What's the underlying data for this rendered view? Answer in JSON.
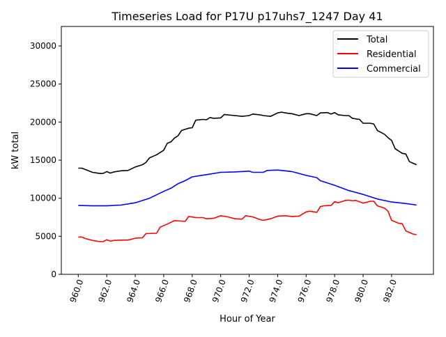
{
  "chart_data": {
    "type": "line",
    "title": "Timeseries Load for P17U p17uhs7_1247  Day 41",
    "xlabel": "Hour of Year",
    "ylabel": "kW total",
    "xlim": [
      958.81,
      984.94
    ],
    "ylim": [
      0,
      32560
    ],
    "xticks": [
      960,
      962,
      964,
      966,
      968,
      970,
      972,
      974,
      976,
      978,
      980,
      982
    ],
    "xtick_labels": [
      "960.0",
      "962.0",
      "964.0",
      "966.0",
      "968.0",
      "970.0",
      "972.0",
      "974.0",
      "976.0",
      "978.0",
      "980.0",
      "982.0"
    ],
    "yticks": [
      0,
      5000,
      10000,
      15000,
      20000,
      25000,
      30000
    ],
    "ytick_labels": [
      "0",
      "5000",
      "10000",
      "15000",
      "20000",
      "25000",
      "30000"
    ],
    "grid": false,
    "legend_position": "top-right",
    "series": [
      {
        "name": "Total",
        "color": "#000000",
        "x": [
          960,
          960.25,
          961,
          961.5,
          961.75,
          962,
          962.25,
          962.5,
          963,
          963.5,
          964,
          964.5,
          964.75,
          965,
          965.5,
          966,
          966.25,
          966.5,
          966.75,
          967,
          967.25,
          967.75,
          968,
          968.25,
          968.75,
          969,
          969.25,
          969.5,
          970,
          970.25,
          970.75,
          971,
          971.5,
          972,
          972.25,
          972.75,
          973,
          973.5,
          974,
          974.25,
          974.75,
          975,
          975.5,
          976,
          976.25,
          976.75,
          977,
          977.5,
          977.75,
          978,
          978.25,
          978.75,
          979,
          979.25,
          979.75,
          980,
          980.5,
          980.75,
          981,
          981.5,
          981.75,
          982,
          982.25,
          982.75,
          983,
          983.25,
          983.5,
          983.75
        ],
        "y": [
          13950,
          13950,
          13400,
          13250,
          13250,
          13500,
          13300,
          13450,
          13600,
          13650,
          14100,
          14400,
          14700,
          15300,
          15700,
          16300,
          17200,
          17400,
          17900,
          18200,
          18900,
          19200,
          19250,
          20250,
          20350,
          20300,
          20600,
          20500,
          20550,
          21000,
          20900,
          20850,
          20750,
          20850,
          21050,
          20950,
          20850,
          20750,
          21200,
          21300,
          21150,
          21100,
          20850,
          21100,
          21100,
          20850,
          21200,
          21250,
          21050,
          21250,
          20950,
          20850,
          20850,
          20500,
          20350,
          19850,
          19850,
          19750,
          18900,
          18400,
          17950,
          17600,
          16500,
          15900,
          15800,
          14800,
          14600,
          14400
        ]
      },
      {
        "name": "Residential",
        "color": "#ff0000",
        "x": [
          960,
          960.25,
          960.5,
          961,
          961.5,
          961.75,
          962,
          962.25,
          962.5,
          963,
          963.5,
          964,
          964.5,
          964.75,
          965.5,
          965.75,
          966.25,
          966.75,
          967.25,
          967.5,
          967.75,
          968.25,
          968.75,
          969,
          969.5,
          970,
          970.5,
          971,
          971.5,
          971.75,
          972.25,
          972.75,
          973,
          973.5,
          974,
          974.5,
          975,
          975.5,
          976,
          976.25,
          976.75,
          977,
          977.25,
          977.75,
          978,
          978.25,
          978.75,
          979,
          979.25,
          979.5,
          980,
          980.5,
          980.75,
          981,
          981.5,
          981.75,
          982,
          982.5,
          982.75,
          983,
          983.5,
          983.75
        ],
        "y": [
          4900,
          4900,
          4700,
          4450,
          4300,
          4300,
          4550,
          4350,
          4450,
          4500,
          4500,
          4750,
          4800,
          5350,
          5400,
          6200,
          6600,
          7050,
          7000,
          6950,
          7600,
          7450,
          7450,
          7300,
          7350,
          7700,
          7550,
          7300,
          7250,
          7700,
          7550,
          7200,
          7100,
          7300,
          7650,
          7700,
          7600,
          7650,
          8200,
          8300,
          8150,
          8900,
          9000,
          9050,
          9550,
          9400,
          9700,
          9750,
          9650,
          9700,
          9350,
          9600,
          9600,
          9000,
          8700,
          8300,
          7100,
          6700,
          6650,
          5700,
          5300,
          5200
        ]
      },
      {
        "name": "Commercial",
        "color": "#0000ff",
        "x": [
          960,
          961,
          962,
          963,
          964,
          965,
          966,
          966.5,
          967,
          967.5,
          968,
          969,
          970,
          971,
          972,
          972.25,
          973,
          973.25,
          974,
          975,
          976,
          976.75,
          977,
          978,
          979,
          980,
          981,
          982,
          983,
          983.75
        ],
        "y": [
          9050,
          9000,
          9000,
          9100,
          9400,
          10000,
          10900,
          11300,
          11900,
          12300,
          12800,
          13100,
          13400,
          13450,
          13550,
          13400,
          13400,
          13650,
          13700,
          13500,
          13000,
          12700,
          12300,
          11700,
          11000,
          10500,
          9900,
          9500,
          9300,
          9100
        ]
      }
    ]
  }
}
